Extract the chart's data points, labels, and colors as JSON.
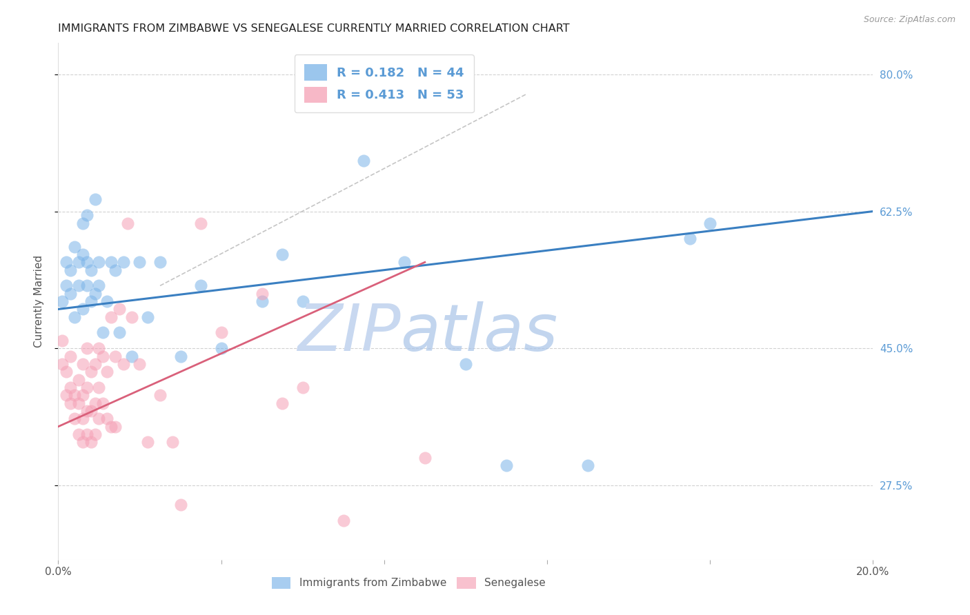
{
  "title": "IMMIGRANTS FROM ZIMBABWE VS SENEGALESE CURRENTLY MARRIED CORRELATION CHART",
  "source": "Source: ZipAtlas.com",
  "ylabel": "Currently Married",
  "xlim": [
    0.0,
    0.2
  ],
  "ylim": [
    0.18,
    0.84
  ],
  "xtick_positions": [
    0.0,
    0.04,
    0.08,
    0.12,
    0.16,
    0.2
  ],
  "xtick_labels": [
    "0.0%",
    "",
    "",
    "",
    "",
    "20.0%"
  ],
  "ytick_vals_right": [
    0.275,
    0.45,
    0.625,
    0.8
  ],
  "ytick_labels_right": [
    "27.5%",
    "45.0%",
    "62.5%",
    "80.0%"
  ],
  "r_zimbabwe": 0.182,
  "n_zimbabwe": 44,
  "r_senegal": 0.413,
  "n_senegal": 53,
  "color_zimbabwe": "#7ab3e8",
  "color_senegal": "#f5a0b5",
  "line_color_zimbabwe": "#3a7fc1",
  "line_color_senegal": "#d9607a",
  "background_color": "#ffffff",
  "grid_color": "#cccccc",
  "watermark_text": "ZIPatlas",
  "watermark_color_zip": "#c8d8f0",
  "watermark_color_atlas": "#a0bde0",
  "title_fontsize": 11.5,
  "axis_label_fontsize": 11,
  "tick_fontsize": 11,
  "right_tick_color": "#5b9bd5",
  "zimbabwe_x": [
    0.001,
    0.002,
    0.002,
    0.003,
    0.003,
    0.004,
    0.004,
    0.005,
    0.005,
    0.006,
    0.006,
    0.006,
    0.007,
    0.007,
    0.007,
    0.008,
    0.008,
    0.009,
    0.009,
    0.01,
    0.01,
    0.011,
    0.012,
    0.013,
    0.014,
    0.015,
    0.016,
    0.018,
    0.02,
    0.022,
    0.025,
    0.03,
    0.035,
    0.04,
    0.05,
    0.055,
    0.06,
    0.075,
    0.085,
    0.1,
    0.11,
    0.13,
    0.155,
    0.16
  ],
  "zimbabwe_y": [
    0.51,
    0.53,
    0.56,
    0.52,
    0.55,
    0.49,
    0.58,
    0.53,
    0.56,
    0.5,
    0.57,
    0.61,
    0.53,
    0.56,
    0.62,
    0.51,
    0.55,
    0.52,
    0.64,
    0.53,
    0.56,
    0.47,
    0.51,
    0.56,
    0.55,
    0.47,
    0.56,
    0.44,
    0.56,
    0.49,
    0.56,
    0.44,
    0.53,
    0.45,
    0.51,
    0.57,
    0.51,
    0.69,
    0.56,
    0.43,
    0.3,
    0.3,
    0.59,
    0.61
  ],
  "senegal_x": [
    0.001,
    0.001,
    0.002,
    0.002,
    0.003,
    0.003,
    0.003,
    0.004,
    0.004,
    0.005,
    0.005,
    0.005,
    0.006,
    0.006,
    0.006,
    0.006,
    0.007,
    0.007,
    0.007,
    0.007,
    0.008,
    0.008,
    0.008,
    0.009,
    0.009,
    0.009,
    0.01,
    0.01,
    0.01,
    0.011,
    0.011,
    0.012,
    0.012,
    0.013,
    0.013,
    0.014,
    0.014,
    0.015,
    0.016,
    0.017,
    0.018,
    0.02,
    0.022,
    0.025,
    0.028,
    0.03,
    0.035,
    0.04,
    0.05,
    0.055,
    0.06,
    0.07,
    0.09
  ],
  "senegal_y": [
    0.43,
    0.46,
    0.39,
    0.42,
    0.38,
    0.4,
    0.44,
    0.36,
    0.39,
    0.34,
    0.38,
    0.41,
    0.33,
    0.36,
    0.39,
    0.43,
    0.34,
    0.37,
    0.4,
    0.45,
    0.33,
    0.37,
    0.42,
    0.34,
    0.38,
    0.43,
    0.36,
    0.4,
    0.45,
    0.38,
    0.44,
    0.36,
    0.42,
    0.35,
    0.49,
    0.35,
    0.44,
    0.5,
    0.43,
    0.61,
    0.49,
    0.43,
    0.33,
    0.39,
    0.33,
    0.25,
    0.61,
    0.47,
    0.52,
    0.38,
    0.4,
    0.23,
    0.31
  ],
  "diag_line_x": [
    0.025,
    0.115
  ],
  "diag_line_y": [
    0.53,
    0.775
  ]
}
